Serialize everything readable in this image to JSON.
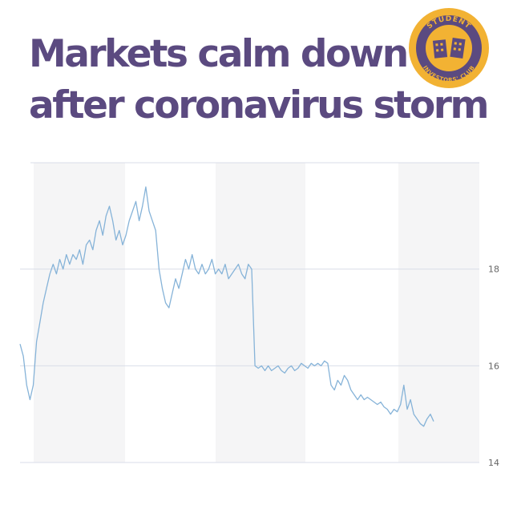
{
  "headline": {
    "line1": "Markets calm down",
    "line2": "after coronavirus storm"
  },
  "logo": {
    "top_text": "STUDENT",
    "bottom_text": "INVESTORS' CLUB",
    "ring_color": "#f2b233",
    "fill_color": "#5b4a80"
  },
  "colors": {
    "headline": "#5b4a80",
    "line": "#86b3d8",
    "band": "#f5f5f6",
    "grid": "#d9dde8"
  },
  "chart_data": {
    "type": "line",
    "title": "",
    "xlabel": "",
    "ylabel": "",
    "ylim": [
      14,
      20.2
    ],
    "yticks": [
      "18",
      "16",
      "14"
    ],
    "ytick_values": [
      18,
      16,
      14
    ],
    "grid": true,
    "y_axis_side": "right",
    "series": [
      {
        "values": [
          16.45,
          16.2,
          15.6,
          15.3,
          15.6,
          16.5,
          16.9,
          17.3,
          17.6,
          17.9,
          18.1,
          17.9,
          18.2,
          18.0,
          18.3,
          18.1,
          18.3,
          18.2,
          18.4,
          18.1,
          18.5,
          18.6,
          18.4,
          18.8,
          19.0,
          18.7,
          19.1,
          19.3,
          19.0,
          18.6,
          18.8,
          18.5,
          18.7,
          19.0,
          19.2,
          19.4,
          19.0,
          19.3,
          19.7,
          19.2,
          19.0,
          18.8,
          18.0,
          17.6,
          17.3,
          17.2,
          17.5,
          17.8,
          17.6,
          17.9,
          18.2,
          18.0,
          18.3,
          18.0,
          17.9,
          18.1,
          17.9,
          18.0,
          18.2,
          17.9,
          18.0,
          17.9,
          18.1,
          17.8,
          17.9,
          18.0,
          18.1,
          17.9,
          17.8,
          18.1,
          18.0,
          16.0,
          15.95,
          16.0,
          15.9,
          16.0,
          15.9,
          15.95,
          16.0,
          15.9,
          15.85,
          15.95,
          16.0,
          15.9,
          15.95,
          16.05,
          16.0,
          15.95,
          16.05,
          16.0,
          16.05,
          16.0,
          16.1,
          16.05,
          15.6,
          15.5,
          15.7,
          15.6,
          15.8,
          15.7,
          15.5,
          15.4,
          15.3,
          15.4,
          15.3,
          15.35,
          15.3,
          15.25,
          15.2,
          15.25,
          15.15,
          15.1,
          15.0,
          15.1,
          15.05,
          15.2,
          15.6,
          15.1,
          15.3,
          15.0,
          14.9,
          14.8,
          14.75,
          14.9,
          15.0,
          14.85
        ]
      }
    ]
  }
}
